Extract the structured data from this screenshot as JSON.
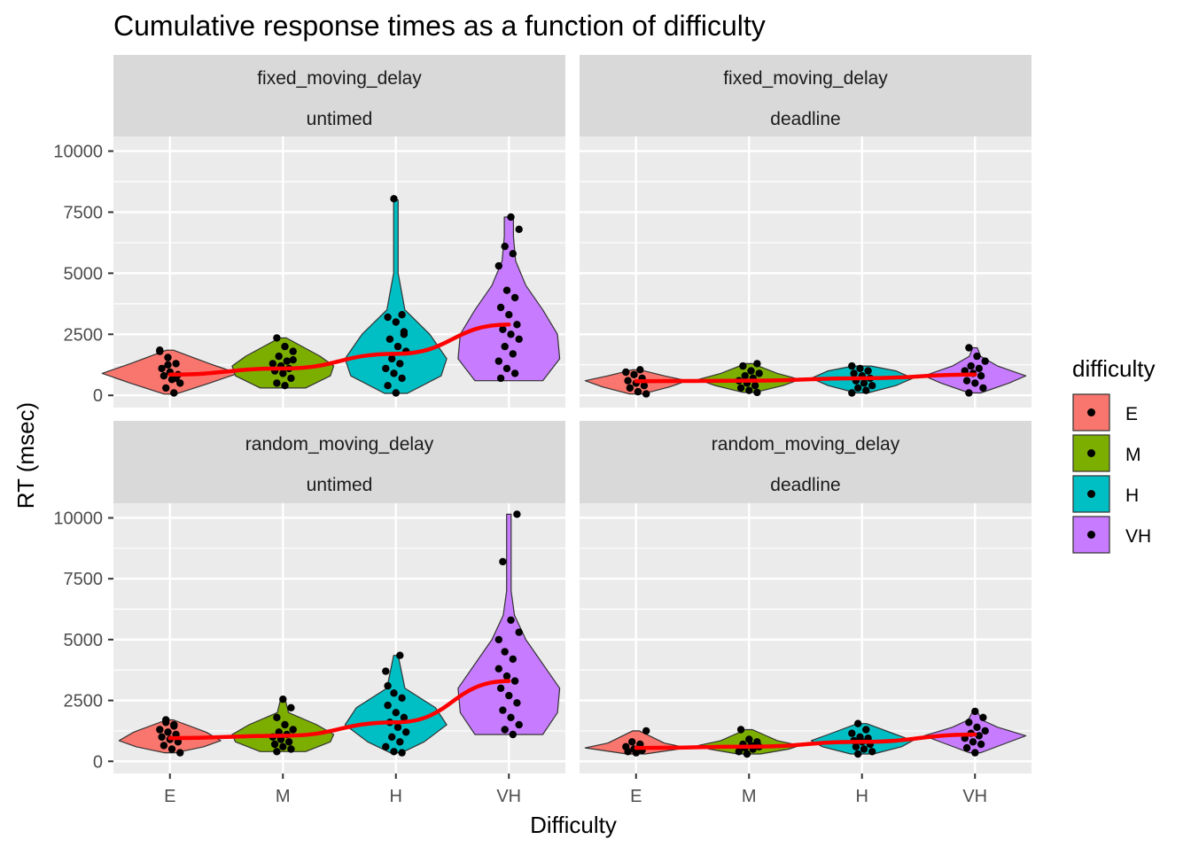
{
  "chart_data": {
    "type": "violin",
    "title": "Cumulative response times as a function of difficulty",
    "xlabel": "Difficulty",
    "ylabel": "RT (msec)",
    "categories": [
      "E",
      "M",
      "H",
      "VH"
    ],
    "yticks": [
      0,
      2500,
      5000,
      7500,
      10000
    ],
    "ylim": [
      -500,
      10600
    ],
    "grid": true,
    "legend": {
      "title": "difficulty",
      "position": "right",
      "entries": [
        {
          "label": "E",
          "color": "#F8766D"
        },
        {
          "label": "M",
          "color": "#7CAE00"
        },
        {
          "label": "H",
          "color": "#00BFC4"
        },
        {
          "label": "VH",
          "color": "#C77CFF"
        }
      ]
    },
    "colors": {
      "E": "#F8766D",
      "M": "#7CAE00",
      "H": "#00BFC4",
      "VH": "#C77CFF",
      "trend": "#FF0000",
      "points": "#000000",
      "panel_bg": "#EBEBEB",
      "strip_bg": "#D9D9D9",
      "grid": "#FFFFFF"
    },
    "panels": [
      {
        "strip": [
          "fixed_moving_delay",
          "untimed"
        ],
        "means": [
          850,
          1100,
          1700,
          2900
        ],
        "violins": [
          {
            "min": 50,
            "max": 1850,
            "widest": 0.6,
            "shape": [
              [
                50,
                0.05
              ],
              [
                500,
                0.35
              ],
              [
                900,
                0.6
              ],
              [
                1300,
                0.35
              ],
              [
                1850,
                0.03
              ]
            ]
          },
          {
            "min": 300,
            "max": 2350,
            "widest": 0.45,
            "shape": [
              [
                300,
                0.2
              ],
              [
                800,
                0.42
              ],
              [
                1200,
                0.45
              ],
              [
                1600,
                0.33
              ],
              [
                2350,
                0.03
              ]
            ]
          },
          {
            "min": 80,
            "max": 8000,
            "widest": 0.45,
            "shape": [
              [
                80,
                0.1
              ],
              [
                800,
                0.4
              ],
              [
                1500,
                0.45
              ],
              [
                2500,
                0.3
              ],
              [
                3500,
                0.08
              ],
              [
                5000,
                0.02
              ],
              [
                8000,
                0.02
              ]
            ]
          },
          {
            "min": 600,
            "max": 7300,
            "widest": 0.45,
            "shape": [
              [
                600,
                0.3
              ],
              [
                1500,
                0.45
              ],
              [
                2500,
                0.43
              ],
              [
                3500,
                0.3
              ],
              [
                4500,
                0.15
              ],
              [
                5500,
                0.06
              ],
              [
                6500,
                0.04
              ],
              [
                7300,
                0.04
              ]
            ]
          }
        ],
        "points": [
          [
            1800,
            1550,
            1300,
            1100,
            950,
            850,
            800,
            650,
            500,
            300,
            100,
            1850,
            1250,
            700
          ],
          [
            2350,
            2000,
            1800,
            1600,
            1400,
            1300,
            1200,
            1100,
            1000,
            900,
            700,
            500,
            400,
            1450
          ],
          [
            8050,
            3300,
            3200,
            3000,
            2600,
            2300,
            2000,
            1800,
            1500,
            1300,
            1100,
            900,
            700,
            400,
            100,
            2500
          ],
          [
            7300,
            6800,
            6100,
            5800,
            5300,
            4300,
            4000,
            3600,
            3300,
            2900,
            2700,
            2500,
            2300,
            2000,
            1700,
            1400,
            1100,
            900,
            700
          ]
        ]
      },
      {
        "strip": [
          "fixed_moving_delay",
          "deadline"
        ],
        "means": [
          580,
          600,
          700,
          850
        ],
        "violins": [
          {
            "min": 60,
            "max": 1050,
            "widest": 0.45,
            "shape": [
              [
                60,
                0.06
              ],
              [
                350,
                0.3
              ],
              [
                600,
                0.45
              ],
              [
                800,
                0.25
              ],
              [
                1050,
                0.03
              ]
            ]
          },
          {
            "min": 120,
            "max": 1300,
            "widest": 0.45,
            "shape": [
              [
                120,
                0.05
              ],
              [
                400,
                0.3
              ],
              [
                650,
                0.45
              ],
              [
                900,
                0.25
              ],
              [
                1300,
                0.03
              ]
            ]
          },
          {
            "min": 100,
            "max": 1200,
            "widest": 0.45,
            "shape": [
              [
                100,
                0.05
              ],
              [
                400,
                0.3
              ],
              [
                700,
                0.45
              ],
              [
                1000,
                0.3
              ],
              [
                1200,
                0.08
              ]
            ]
          },
          {
            "min": 100,
            "max": 1950,
            "widest": 0.45,
            "shape": [
              [
                100,
                0.05
              ],
              [
                500,
                0.3
              ],
              [
                800,
                0.45
              ],
              [
                1200,
                0.2
              ],
              [
                1600,
                0.05
              ],
              [
                1950,
                0.02
              ]
            ]
          }
        ],
        "points": [
          [
            1050,
            950,
            850,
            700,
            600,
            500,
            400,
            300,
            150,
            60
          ],
          [
            1300,
            1200,
            1000,
            900,
            800,
            700,
            600,
            500,
            400,
            300,
            200,
            120
          ],
          [
            1200,
            1100,
            1000,
            900,
            800,
            700,
            600,
            500,
            400,
            300,
            200,
            100
          ],
          [
            1950,
            1600,
            1400,
            1200,
            1100,
            1000,
            900,
            800,
            600,
            500,
            300,
            100
          ]
        ]
      },
      {
        "strip": [
          "random_moving_delay",
          "untimed"
        ],
        "means": [
          950,
          1050,
          1600,
          3300
        ],
        "violins": [
          {
            "min": 350,
            "max": 1700,
            "widest": 0.45,
            "shape": [
              [
                350,
                0.05
              ],
              [
                600,
                0.3
              ],
              [
                850,
                0.45
              ],
              [
                1200,
                0.32
              ],
              [
                1700,
                0.03
              ]
            ]
          },
          {
            "min": 400,
            "max": 2550,
            "widest": 0.45,
            "shape": [
              [
                400,
                0.2
              ],
              [
                800,
                0.42
              ],
              [
                1100,
                0.45
              ],
              [
                1500,
                0.3
              ],
              [
                2000,
                0.05
              ],
              [
                2550,
                0.02
              ]
            ]
          },
          {
            "min": 350,
            "max": 4350,
            "widest": 0.45,
            "shape": [
              [
                350,
                0.05
              ],
              [
                800,
                0.25
              ],
              [
                1500,
                0.45
              ],
              [
                2200,
                0.35
              ],
              [
                3000,
                0.08
              ],
              [
                4350,
                0.02
              ]
            ]
          },
          {
            "min": 1100,
            "max": 10150,
            "widest": 0.45,
            "shape": [
              [
                1100,
                0.3
              ],
              [
                2000,
                0.43
              ],
              [
                3000,
                0.45
              ],
              [
                4000,
                0.3
              ],
              [
                5000,
                0.15
              ],
              [
                6000,
                0.05
              ],
              [
                7000,
                0.02
              ],
              [
                8500,
                0.02
              ],
              [
                10150,
                0.02
              ]
            ]
          }
        ],
        "points": [
          [
            1700,
            1500,
            1300,
            1200,
            1100,
            1000,
            900,
            800,
            650,
            500,
            350,
            1600,
            1450
          ],
          [
            2550,
            2200,
            1800,
            1500,
            1300,
            1200,
            1100,
            1000,
            900,
            800,
            700,
            600,
            500,
            400
          ],
          [
            4350,
            3700,
            2800,
            2600,
            2300,
            2000,
            1800,
            1600,
            1400,
            1200,
            1000,
            800,
            600,
            400,
            350,
            3100
          ],
          [
            10150,
            8200,
            5800,
            5300,
            4500,
            4200,
            3800,
            3500,
            3300,
            3000,
            2700,
            2400,
            2100,
            1800,
            1500,
            1300,
            1100,
            5000
          ]
        ]
      },
      {
        "strip": [
          "random_moving_delay",
          "deadline"
        ],
        "means": [
          550,
          600,
          800,
          1100
        ],
        "violins": [
          {
            "min": 300,
            "max": 1250,
            "widest": 0.45,
            "shape": [
              [
                300,
                0.08
              ],
              [
                450,
                0.3
              ],
              [
                550,
                0.45
              ],
              [
                750,
                0.25
              ],
              [
                1250,
                0.03
              ]
            ]
          },
          {
            "min": 300,
            "max": 1300,
            "widest": 0.45,
            "shape": [
              [
                300,
                0.1
              ],
              [
                500,
                0.35
              ],
              [
                650,
                0.45
              ],
              [
                850,
                0.25
              ],
              [
                1300,
                0.03
              ]
            ]
          },
          {
            "min": 300,
            "max": 1550,
            "widest": 0.45,
            "shape": [
              [
                300,
                0.1
              ],
              [
                600,
                0.35
              ],
              [
                850,
                0.45
              ],
              [
                1100,
                0.3
              ],
              [
                1550,
                0.04
              ]
            ]
          },
          {
            "min": 350,
            "max": 2050,
            "widest": 0.45,
            "shape": [
              [
                350,
                0.05
              ],
              [
                700,
                0.25
              ],
              [
                1050,
                0.45
              ],
              [
                1400,
                0.2
              ],
              [
                1700,
                0.06
              ],
              [
                2050,
                0.02
              ]
            ]
          }
        ],
        "points": [
          [
            1250,
            800,
            700,
            600,
            500,
            450,
            400,
            350
          ],
          [
            1300,
            900,
            800,
            700,
            650,
            600,
            550,
            500,
            400,
            300
          ],
          [
            1550,
            1300,
            1150,
            1000,
            950,
            850,
            800,
            700,
            600,
            500,
            400,
            300
          ],
          [
            2050,
            1800,
            1600,
            1400,
            1250,
            1150,
            1050,
            950,
            800,
            700,
            550,
            350
          ]
        ]
      }
    ]
  }
}
